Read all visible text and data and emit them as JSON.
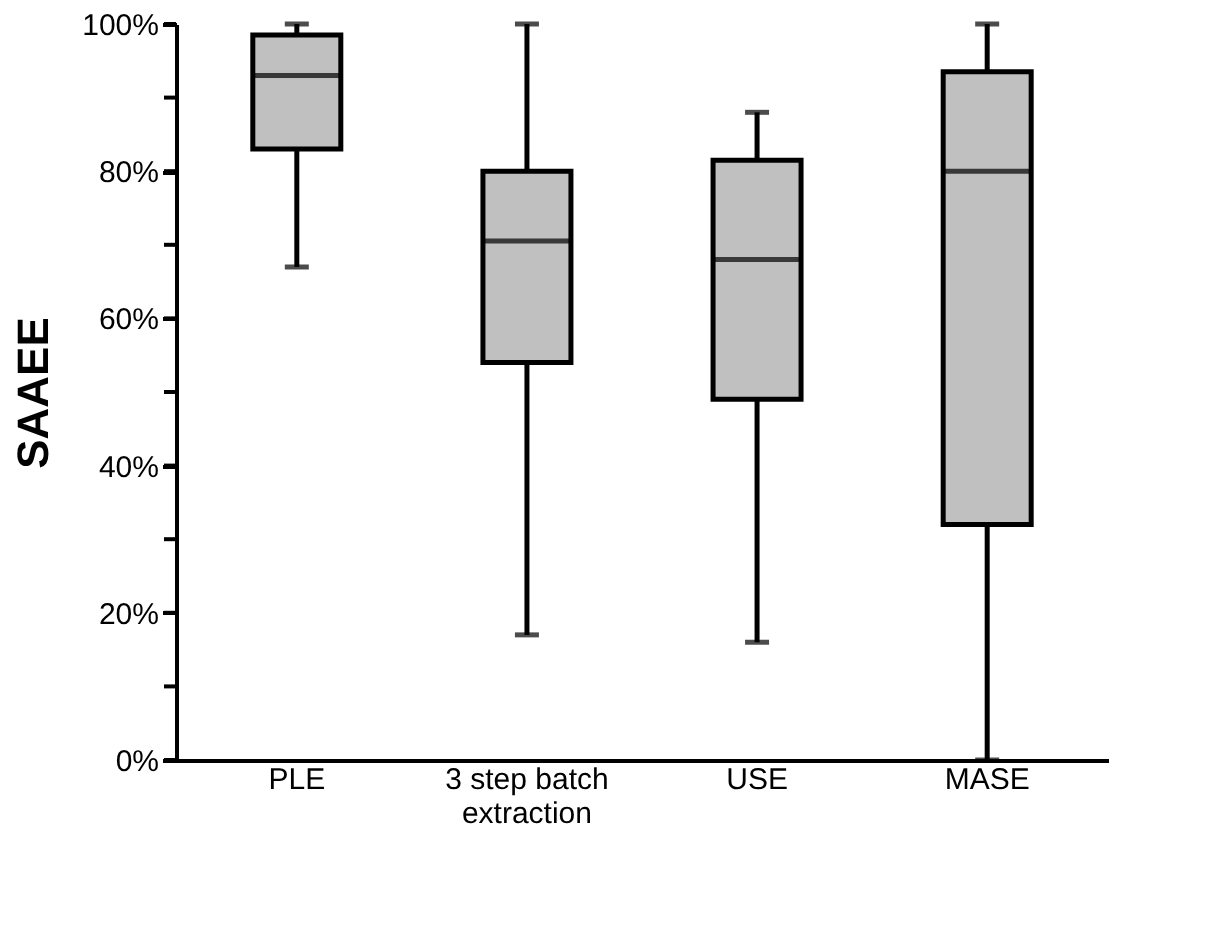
{
  "chart_data": {
    "type": "box",
    "ylabel": "SAAEE",
    "categories": [
      "PLE",
      "3 step batch\nextraction",
      "USE",
      "MASE"
    ],
    "boxes": [
      {
        "low": 67,
        "q1": 83,
        "median": 93,
        "q3": 98.5,
        "high": 100
      },
      {
        "low": 17,
        "q1": 54,
        "median": 70.5,
        "q3": 80,
        "high": 100
      },
      {
        "low": 16,
        "q1": 49,
        "median": 68,
        "q3": 81.5,
        "high": 88
      },
      {
        "low": 0,
        "q1": 32,
        "median": 80,
        "q3": 93.5,
        "high": 100
      }
    ],
    "color": "#c0c0c0",
    "ylim": [
      0,
      100
    ],
    "yticks": [
      {
        "value": 0,
        "label": "0%"
      },
      {
        "value": 10,
        "label": null
      },
      {
        "value": 20,
        "label": "20%"
      },
      {
        "value": 30,
        "label": null
      },
      {
        "value": 40,
        "label": "40%"
      },
      {
        "value": 50,
        "label": null
      },
      {
        "value": 60,
        "label": "60%"
      },
      {
        "value": 70,
        "label": null
      },
      {
        "value": 80,
        "label": "80%"
      },
      {
        "value": 90,
        "label": null
      },
      {
        "value": 100,
        "label": "100%"
      }
    ],
    "grid": false
  }
}
